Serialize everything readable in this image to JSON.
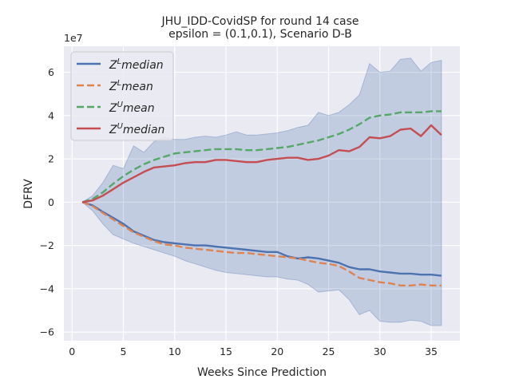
{
  "chart_data": {
    "type": "line",
    "title": "JHU_IDD-CovidSP for round 14 case",
    "subtitle": "epsilon = (0.1,0.1), Scenario D-B",
    "xlabel": "Weeks Since Prediction",
    "ylabel": "DFRV",
    "y_scale_label": "1e7",
    "xlim": [
      -0.8,
      37.8
    ],
    "ylim": [
      -6.4,
      7.2
    ],
    "xticks": [
      0,
      5,
      10,
      15,
      20,
      25,
      30,
      35
    ],
    "yticks": [
      -6,
      -4,
      -2,
      0,
      2,
      4,
      6
    ],
    "grid": true,
    "legend_position": "top-left",
    "x": [
      1,
      2,
      3,
      4,
      5,
      6,
      7,
      8,
      9,
      10,
      11,
      12,
      13,
      14,
      15,
      16,
      17,
      18,
      19,
      20,
      21,
      22,
      23,
      24,
      25,
      26,
      27,
      28,
      29,
      30,
      31,
      32,
      33,
      34,
      35,
      36
    ],
    "series": [
      {
        "name": "Z",
        "name_sup": "L",
        "name_suffix": "median",
        "style": "solid",
        "color": "#4c72b0",
        "values": [
          0,
          -0.15,
          -0.45,
          -0.72,
          -1.0,
          -1.35,
          -1.55,
          -1.75,
          -1.85,
          -1.9,
          -1.95,
          -2.0,
          -2.0,
          -2.05,
          -2.1,
          -2.15,
          -2.2,
          -2.25,
          -2.3,
          -2.3,
          -2.5,
          -2.6,
          -2.55,
          -2.6,
          -2.7,
          -2.8,
          -3.0,
          -3.1,
          -3.1,
          -3.2,
          -3.25,
          -3.3,
          -3.3,
          -3.35,
          -3.35,
          -3.4
        ]
      },
      {
        "name": "Z",
        "name_sup": "L",
        "name_suffix": "mean",
        "style": "dashed",
        "color": "#dd8452",
        "values": [
          0,
          -0.18,
          -0.5,
          -0.8,
          -1.1,
          -1.4,
          -1.6,
          -1.8,
          -1.95,
          -2.0,
          -2.1,
          -2.15,
          -2.2,
          -2.25,
          -2.3,
          -2.35,
          -2.35,
          -2.4,
          -2.45,
          -2.5,
          -2.55,
          -2.6,
          -2.7,
          -2.8,
          -2.85,
          -2.95,
          -3.2,
          -3.5,
          -3.6,
          -3.7,
          -3.75,
          -3.85,
          -3.85,
          -3.8,
          -3.85,
          -3.85
        ]
      },
      {
        "name": "Z",
        "name_sup": "U",
        "name_suffix": "mean",
        "style": "dashed",
        "color": "#55a868",
        "values": [
          0,
          0.15,
          0.45,
          0.85,
          1.2,
          1.5,
          1.75,
          1.95,
          2.1,
          2.25,
          2.3,
          2.35,
          2.4,
          2.45,
          2.45,
          2.45,
          2.4,
          2.4,
          2.45,
          2.5,
          2.55,
          2.65,
          2.75,
          2.85,
          3.0,
          3.15,
          3.35,
          3.6,
          3.9,
          4.0,
          4.05,
          4.15,
          4.15,
          4.15,
          4.2,
          4.2
        ]
      },
      {
        "name": "Z",
        "name_sup": "U",
        "name_suffix": "median",
        "style": "solid",
        "color": "#c44e52",
        "values": [
          0,
          0.08,
          0.3,
          0.6,
          0.9,
          1.15,
          1.4,
          1.6,
          1.65,
          1.7,
          1.8,
          1.85,
          1.85,
          1.95,
          1.95,
          1.9,
          1.85,
          1.85,
          1.95,
          2.0,
          2.05,
          2.05,
          1.95,
          2.0,
          2.15,
          2.4,
          2.35,
          2.55,
          3.0,
          2.95,
          3.05,
          3.35,
          3.4,
          3.05,
          3.55,
          3.1
        ]
      }
    ],
    "band": {
      "color": "#4c72b0",
      "opacity": 0.25,
      "upper": [
        0,
        0.3,
        0.9,
        1.7,
        1.55,
        2.6,
        2.3,
        2.8,
        3.0,
        2.9,
        2.9,
        3.0,
        3.05,
        3.0,
        3.1,
        3.25,
        3.1,
        3.1,
        3.15,
        3.2,
        3.3,
        3.45,
        3.55,
        4.15,
        4.0,
        4.15,
        4.5,
        4.95,
        6.4,
        6.0,
        6.05,
        6.6,
        6.65,
        6.05,
        6.45,
        6.55
      ],
      "lower": [
        0,
        -0.4,
        -1.0,
        -1.5,
        -1.7,
        -1.9,
        -2.05,
        -2.2,
        -2.35,
        -2.5,
        -2.7,
        -2.85,
        -3.0,
        -3.15,
        -3.25,
        -3.3,
        -3.35,
        -3.4,
        -3.45,
        -3.45,
        -3.55,
        -3.6,
        -3.8,
        -4.15,
        -4.1,
        -4.05,
        -4.5,
        -5.2,
        -5.0,
        -5.5,
        -5.55,
        -5.55,
        -5.45,
        -5.5,
        -5.7,
        -5.7
      ]
    }
  }
}
